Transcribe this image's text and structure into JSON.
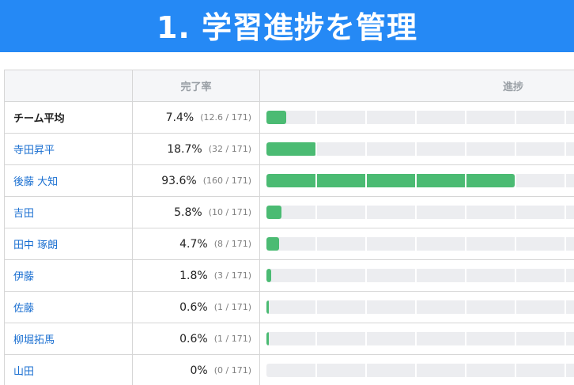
{
  "banner": {
    "title": "1. 学習進捗を管理"
  },
  "table": {
    "headers": {
      "name": "",
      "rate": "完了率",
      "progress": "進捗"
    },
    "rows": [
      {
        "name": "チーム平均",
        "bold": true,
        "percent": "7.4%",
        "fraction": "(12.6 / 171)",
        "progress": 0.074
      },
      {
        "name": "寺田昇平",
        "bold": false,
        "percent": "18.7%",
        "fraction": "(32 / 171)",
        "progress": 0.187
      },
      {
        "name": "後藤 大知",
        "bold": false,
        "percent": "93.6%",
        "fraction": "(160 / 171)",
        "progress": 0.936
      },
      {
        "name": "吉田",
        "bold": false,
        "percent": "5.8%",
        "fraction": "(10 / 171)",
        "progress": 0.058
      },
      {
        "name": "田中 琢朗",
        "bold": false,
        "percent": "4.7%",
        "fraction": "(8 / 171)",
        "progress": 0.047
      },
      {
        "name": "伊藤",
        "bold": false,
        "percent": "1.8%",
        "fraction": "(3 / 171)",
        "progress": 0.018
      },
      {
        "name": "佐藤",
        "bold": false,
        "percent": "0.6%",
        "fraction": "(1 / 171)",
        "progress": 0.006
      },
      {
        "name": "柳堀拓馬",
        "bold": false,
        "percent": "0.6%",
        "fraction": "(1 / 171)",
        "progress": 0.006
      },
      {
        "name": "山田",
        "bold": false,
        "percent": "0%",
        "fraction": "(0 / 171)",
        "progress": 0.0
      }
    ]
  },
  "colors": {
    "banner": "#2589f5",
    "bar_fill": "#4bbb73",
    "bar_track": "#ecedf0",
    "link": "#1a6fd1"
  }
}
